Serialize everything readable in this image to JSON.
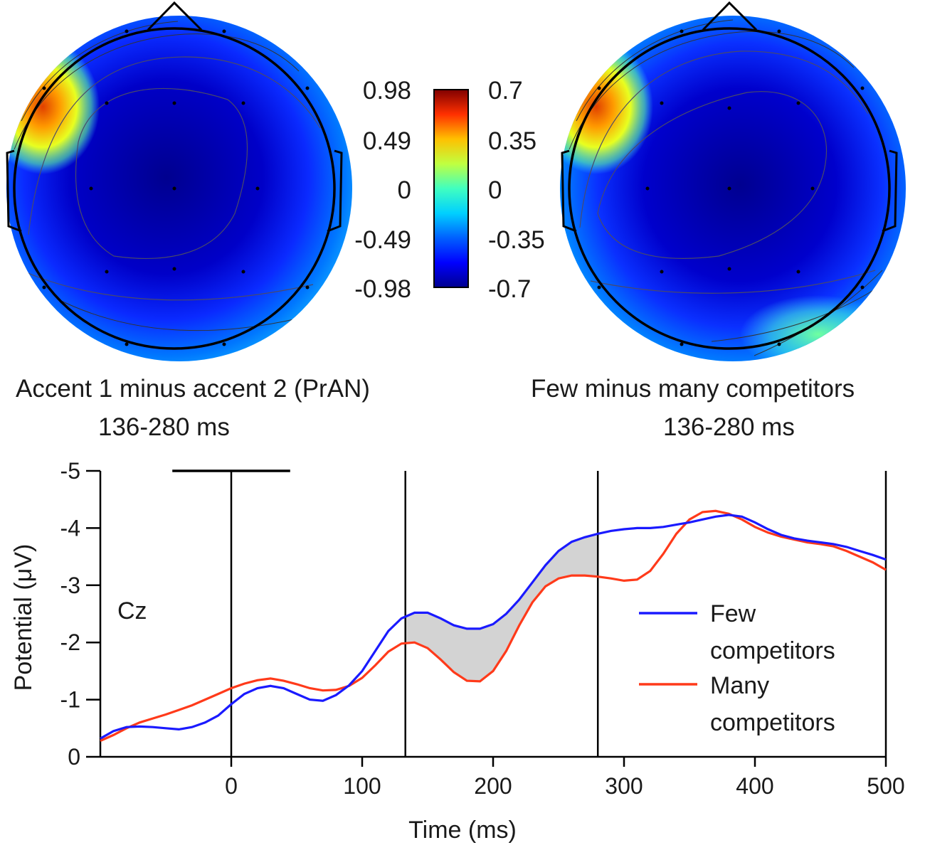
{
  "topomaps": [
    {
      "caption_line1": "Accent 1 minus accent 2 (PrAN)",
      "caption_line2": "136-280 ms"
    },
    {
      "caption_line1": "Few minus many competitors",
      "caption_line2": "136-280 ms"
    }
  ],
  "colorbar": {
    "left_ticks": [
      "0.98",
      "0.49",
      "0",
      "-0.49",
      "-0.98"
    ],
    "right_ticks": [
      "0.7",
      "0.35",
      "0",
      "-0.35",
      "-0.7"
    ],
    "colormap": [
      "#00008f",
      "#0000ff",
      "#0080ff",
      "#00ffff",
      "#80ff80",
      "#ffff00",
      "#ff8000",
      "#ff0000",
      "#800000"
    ]
  },
  "chart_data": {
    "type": "line",
    "channel_label": "Cz",
    "xlabel": "Time (ms)",
    "ylabel": "Potential (μV)",
    "xlim": [
      -100,
      500
    ],
    "ylim": [
      0,
      -5
    ],
    "xticks": [
      0,
      100,
      200,
      300,
      400,
      500
    ],
    "xtick_labels": [
      "0",
      "100",
      "200",
      "300",
      "400",
      "500"
    ],
    "yticks": [
      -5,
      -4,
      -3,
      -2,
      -1,
      0
    ],
    "ytick_labels": [
      "-5",
      "-4",
      "-3",
      "-2",
      "-1",
      "0"
    ],
    "vertical_markers_ms": [
      0,
      133,
      280,
      500
    ],
    "baseline_bar_ms": [
      -45,
      45
    ],
    "shaded_window_ms": [
      133,
      280
    ],
    "shade_color": "#d3d3d3",
    "series": [
      {
        "name": "Few competitors",
        "color": "#1a1aff",
        "x": [
          -100,
          -90,
          -80,
          -70,
          -60,
          -50,
          -40,
          -30,
          -20,
          -10,
          0,
          10,
          20,
          30,
          40,
          50,
          60,
          70,
          80,
          90,
          100,
          110,
          120,
          130,
          140,
          150,
          160,
          170,
          180,
          190,
          200,
          210,
          220,
          230,
          240,
          250,
          260,
          270,
          280,
          290,
          300,
          310,
          320,
          330,
          340,
          350,
          360,
          370,
          380,
          390,
          400,
          410,
          420,
          430,
          440,
          450,
          460,
          470,
          480,
          490,
          500
        ],
        "values": [
          -0.32,
          -0.45,
          -0.52,
          -0.53,
          -0.52,
          -0.5,
          -0.48,
          -0.52,
          -0.6,
          -0.72,
          -0.92,
          -1.1,
          -1.2,
          -1.24,
          -1.2,
          -1.1,
          -1.0,
          -0.98,
          -1.08,
          -1.25,
          -1.5,
          -1.85,
          -2.2,
          -2.42,
          -2.52,
          -2.52,
          -2.42,
          -2.3,
          -2.24,
          -2.24,
          -2.32,
          -2.5,
          -2.75,
          -3.05,
          -3.35,
          -3.6,
          -3.76,
          -3.84,
          -3.9,
          -3.95,
          -3.98,
          -4.0,
          -4.0,
          -4.02,
          -4.06,
          -4.1,
          -4.15,
          -4.2,
          -4.23,
          -4.2,
          -4.1,
          -3.98,
          -3.88,
          -3.82,
          -3.78,
          -3.75,
          -3.72,
          -3.67,
          -3.6,
          -3.53,
          -3.45
        ]
      },
      {
        "name": "Many competitors",
        "color": "#ff3a1a",
        "x": [
          -100,
          -90,
          -80,
          -70,
          -60,
          -50,
          -40,
          -30,
          -20,
          -10,
          0,
          10,
          20,
          30,
          40,
          50,
          60,
          70,
          80,
          90,
          100,
          110,
          120,
          130,
          140,
          150,
          160,
          170,
          180,
          190,
          200,
          210,
          220,
          230,
          240,
          250,
          260,
          270,
          280,
          290,
          300,
          310,
          320,
          330,
          340,
          350,
          360,
          370,
          380,
          390,
          400,
          410,
          420,
          430,
          440,
          450,
          460,
          470,
          480,
          490,
          500
        ],
        "values": [
          -0.28,
          -0.38,
          -0.5,
          -0.6,
          -0.67,
          -0.74,
          -0.82,
          -0.9,
          -1.0,
          -1.1,
          -1.2,
          -1.28,
          -1.34,
          -1.37,
          -1.33,
          -1.27,
          -1.2,
          -1.16,
          -1.17,
          -1.24,
          -1.38,
          -1.6,
          -1.84,
          -1.98,
          -2.0,
          -1.9,
          -1.7,
          -1.48,
          -1.33,
          -1.32,
          -1.5,
          -1.85,
          -2.3,
          -2.7,
          -2.98,
          -3.12,
          -3.17,
          -3.17,
          -3.15,
          -3.12,
          -3.08,
          -3.1,
          -3.25,
          -3.55,
          -3.9,
          -4.15,
          -4.28,
          -4.3,
          -4.25,
          -4.15,
          -4.02,
          -3.92,
          -3.85,
          -3.8,
          -3.75,
          -3.72,
          -3.68,
          -3.6,
          -3.5,
          -3.4,
          -3.27
        ]
      }
    ],
    "legend": [
      {
        "label_line1": "Few",
        "label_line2": "competitors"
      },
      {
        "label_line1": "Many",
        "label_line2": "competitors"
      }
    ],
    "legend_position": "right"
  }
}
